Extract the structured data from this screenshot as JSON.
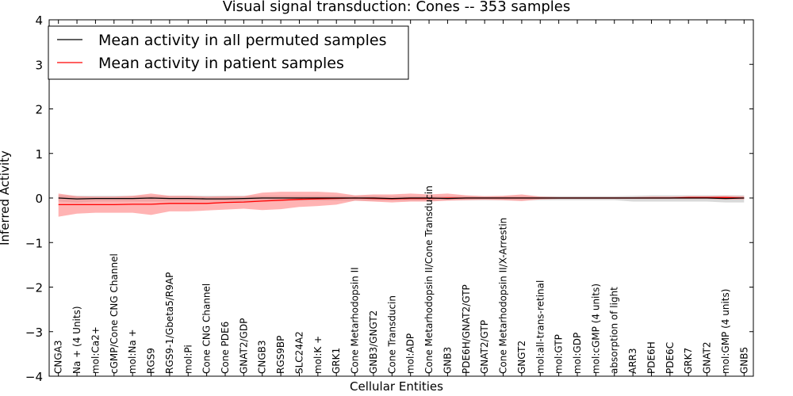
{
  "chart_data": {
    "type": "line",
    "title": "Visual signal transduction: Cones -- 353 samples",
    "xlabel": "Cellular Entities",
    "ylabel": "Inferred Activity",
    "ylim": [
      -4,
      4
    ],
    "yticks": [
      -4,
      -3,
      -2,
      -1,
      0,
      1,
      2,
      3,
      4
    ],
    "ytick_labels": [
      "−4",
      "−3",
      "−2",
      "−1",
      "0",
      "1",
      "2",
      "3",
      "4"
    ],
    "grid": false,
    "legend_position": "top-left",
    "colors": {
      "permuted": "#000000",
      "patient": "#ff0000",
      "patient_band": "#ff8080",
      "permuted_band": "#bfbfbf"
    },
    "categories": [
      "CNGA3",
      "Na + (4 Units)",
      "mol:Ca2+",
      "cGMP/Cone CNG Channel",
      "mol:Na +",
      "RGS9",
      "RGS9-1/Gbeta5/R9AP",
      "mol:Pi",
      "Cone CNG Channel",
      "Cone PDE6",
      "GNAT2/GDP",
      "CNGB3",
      "RGS9BP",
      "SLC24A2",
      "mol:K +",
      "GRK1",
      "Cone Metarhodopsin II",
      "GNB3/GNGT2",
      "Cone Transducin",
      "mol:ADP",
      "Cone Metarhodopsin II/Cone Transducin",
      "GNB3",
      "PDE6H/GNAT2/GTP",
      "GNAT2/GTP",
      "Cone Metarhodopsin II/X-Arrestin",
      "GNGT2",
      "mol:all-trans-retinal",
      "mol:GTP",
      "mol:GDP",
      "mol:cGMP (4 units)",
      "absorption of light",
      "ARR3",
      "PDE6H",
      "PDE6C",
      "GRK7",
      "GNAT2",
      "mol:GMP (4 units)",
      "GNB5"
    ],
    "series": [
      {
        "name": "Mean activity in all permuted samples",
        "values": [
          0.0,
          -0.02,
          -0.01,
          -0.01,
          -0.01,
          0.0,
          -0.01,
          -0.01,
          -0.02,
          -0.02,
          -0.01,
          0.0,
          0.0,
          0.0,
          0.0,
          0.0,
          0.0,
          0.0,
          -0.01,
          0.0,
          0.0,
          -0.01,
          0.0,
          0.0,
          0.0,
          0.0,
          0.0,
          0.0,
          0.0,
          0.0,
          0.0,
          0.0,
          0.0,
          0.0,
          0.0,
          0.0,
          -0.01,
          0.0
        ],
        "lower": [
          -0.08,
          -0.1,
          -0.08,
          -0.08,
          -0.08,
          -0.08,
          -0.08,
          -0.08,
          -0.08,
          -0.08,
          -0.08,
          -0.06,
          -0.06,
          -0.06,
          -0.06,
          -0.06,
          -0.06,
          -0.06,
          -0.06,
          -0.06,
          -0.06,
          -0.05,
          -0.05,
          -0.05,
          -0.05,
          -0.05,
          -0.05,
          -0.05,
          -0.05,
          -0.05,
          -0.05,
          -0.08,
          -0.08,
          -0.08,
          -0.08,
          -0.08,
          -0.1,
          -0.1
        ],
        "upper": [
          0.07,
          0.05,
          0.05,
          0.05,
          0.05,
          0.05,
          0.05,
          0.05,
          0.05,
          0.05,
          0.05,
          0.05,
          0.05,
          0.05,
          0.05,
          0.05,
          0.05,
          0.05,
          0.04,
          0.04,
          0.04,
          0.04,
          0.04,
          0.04,
          0.04,
          0.04,
          0.04,
          0.04,
          0.04,
          0.04,
          0.04,
          0.05,
          0.06,
          0.06,
          0.06,
          0.06,
          0.06,
          0.06
        ]
      },
      {
        "name": "Mean activity in patient samples",
        "values": [
          -0.15,
          -0.15,
          -0.15,
          -0.15,
          -0.14,
          -0.14,
          -0.12,
          -0.12,
          -0.12,
          -0.1,
          -0.09,
          -0.07,
          -0.05,
          -0.03,
          -0.02,
          -0.01,
          0.0,
          -0.01,
          -0.02,
          -0.01,
          -0.01,
          0.0,
          0.0,
          0.0,
          0.0,
          0.0,
          0.0,
          0.0,
          0.0,
          0.0,
          0.0,
          0.0,
          0.0,
          0.0,
          0.01,
          0.01,
          0.01,
          0.0
        ],
        "lower": [
          -0.42,
          -0.35,
          -0.33,
          -0.33,
          -0.33,
          -0.38,
          -0.3,
          -0.3,
          -0.28,
          -0.26,
          -0.24,
          -0.27,
          -0.25,
          -0.2,
          -0.18,
          -0.15,
          -0.06,
          -0.08,
          -0.1,
          -0.08,
          -0.08,
          -0.06,
          -0.05,
          -0.04,
          -0.05,
          -0.07,
          -0.03,
          -0.02,
          -0.02,
          -0.02,
          -0.02,
          -0.02,
          -0.02,
          -0.02,
          -0.02,
          -0.02,
          -0.03,
          -0.03
        ],
        "upper": [
          0.1,
          0.04,
          0.03,
          0.03,
          0.05,
          0.1,
          0.05,
          0.05,
          0.03,
          0.04,
          0.04,
          0.12,
          0.14,
          0.14,
          0.14,
          0.12,
          0.06,
          0.08,
          0.08,
          0.1,
          0.08,
          0.1,
          0.06,
          0.04,
          0.05,
          0.08,
          0.03,
          0.02,
          0.02,
          0.02,
          0.02,
          0.02,
          0.03,
          0.03,
          0.04,
          0.04,
          0.05,
          0.04
        ]
      }
    ]
  }
}
